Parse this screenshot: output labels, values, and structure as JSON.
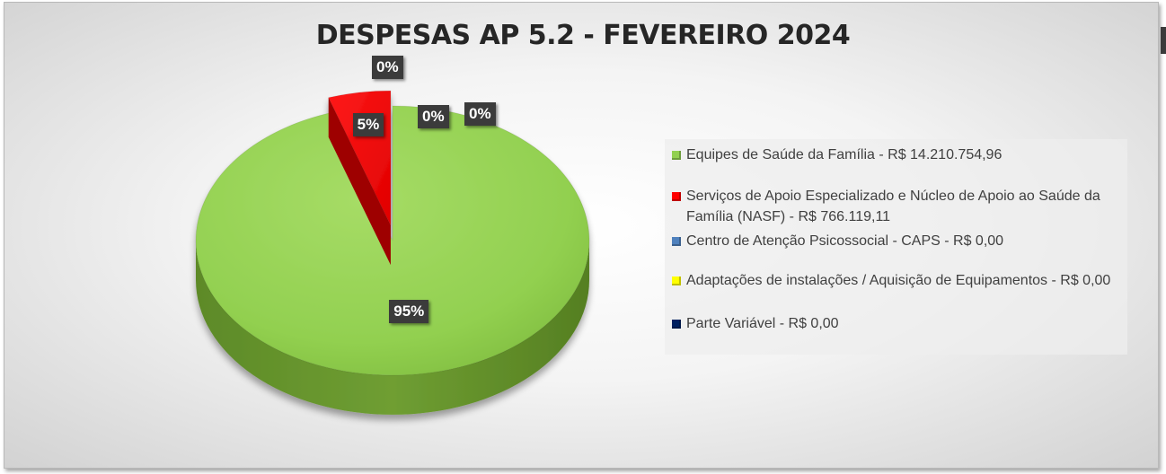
{
  "chart_data": {
    "type": "pie",
    "title": "DESPESAS AP 5.2 - FEVEREIRO 2024",
    "slices": [
      {
        "label": "Equipes de Saúde da Família - R$ 14.210.754,96",
        "value": 14210754.96,
        "percent_label": "95%",
        "color": "#92d050"
      },
      {
        "label": "Serviços de Apoio Especializado e Núcleo de Apoio ao Saúde da Família (NASF) - R$ 766.119,11",
        "value": 766119.11,
        "percent_label": "5%",
        "color": "#ff0000"
      },
      {
        "label": "Centro de Atenção Psicossocial - CAPS - R$ 0,00",
        "value": 0,
        "percent_label": "0%",
        "color": "#4f81bd"
      },
      {
        "label": "Adaptações de instalações / Aquisição de Equipamentos - R$ 0,00",
        "value": 0,
        "percent_label": "0%",
        "color": "#ffff00"
      },
      {
        "label": "Parte Variável - R$ 0,00",
        "value": 0,
        "percent_label": "0%",
        "color": "#002060"
      }
    ],
    "legend_position": "right",
    "three_d": true
  }
}
